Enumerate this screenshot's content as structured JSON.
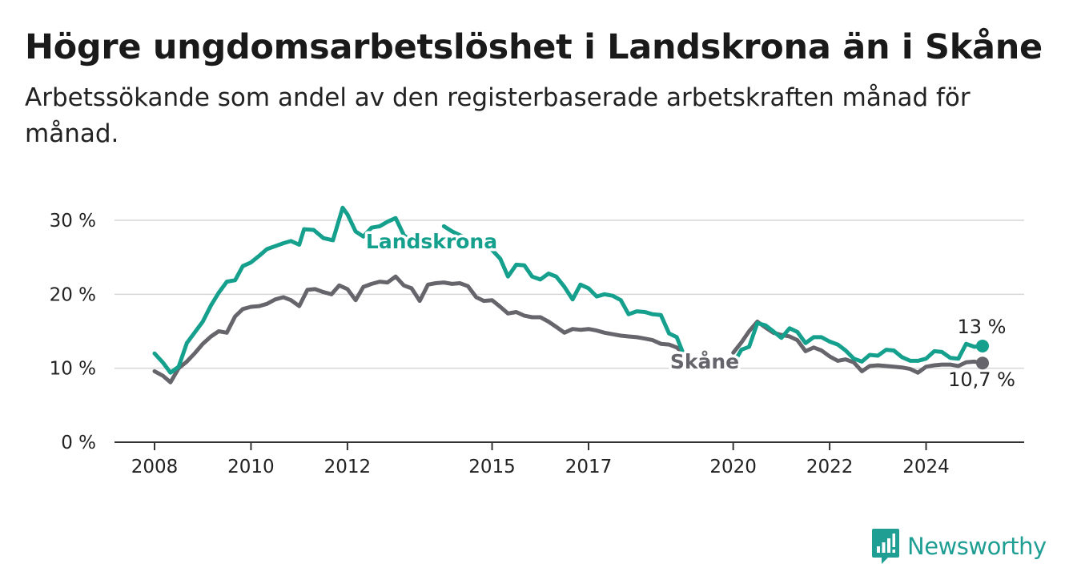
{
  "header": {
    "title": "Högre ungdomsarbetslöshet i Landskrona än i Skåne",
    "subtitle": "Arbetssökande som andel av den registerbaserade arbetskraften månad för månad."
  },
  "brand": {
    "name": "Newsworthy",
    "icon": "newsworthy-logo-icon",
    "color": "#1f9e94"
  },
  "chart_data": {
    "type": "line",
    "title": "Högre ungdomsarbetslöshet i Landskrona än i Skåne",
    "subtitle": "Arbetssökande som andel av den registerbaserade arbetskraften månad för månad.",
    "xlabel": "",
    "ylabel": "",
    "xlim": [
      2008,
      2025.8
    ],
    "ylim": [
      0,
      33
    ],
    "x_ticks": [
      {
        "value": 2008,
        "label": "2008"
      },
      {
        "value": 2010,
        "label": "2010"
      },
      {
        "value": 2012,
        "label": "2012"
      },
      {
        "value": 2015,
        "label": "2015"
      },
      {
        "value": 2017,
        "label": "2017"
      },
      {
        "value": 2020,
        "label": "2020"
      },
      {
        "value": 2022,
        "label": "2022"
      },
      {
        "value": 2024,
        "label": "2024"
      }
    ],
    "y_ticks": [
      {
        "value": 0,
        "label": "0 %"
      },
      {
        "value": 10,
        "label": "10 %"
      },
      {
        "value": 20,
        "label": "20 %"
      },
      {
        "value": 30,
        "label": "30 %"
      }
    ],
    "grid": "horizontal",
    "series": [
      {
        "name": "Landskrona",
        "color": "#15a08d",
        "end_label": "13 %",
        "segments": [
          [
            [
              2008.0,
              12.0
            ],
            [
              2008.17,
              10.8
            ],
            [
              2008.33,
              9.4
            ],
            [
              2008.5,
              10.2
            ],
            [
              2008.67,
              13.4
            ],
            [
              2008.83,
              14.8
            ],
            [
              2009.0,
              16.3
            ],
            [
              2009.17,
              18.5
            ],
            [
              2009.33,
              20.2
            ],
            [
              2009.5,
              21.7
            ],
            [
              2009.67,
              21.9
            ],
            [
              2009.83,
              23.8
            ],
            [
              2010.0,
              24.3
            ],
            [
              2010.17,
              25.2
            ],
            [
              2010.33,
              26.1
            ],
            [
              2010.5,
              26.5
            ],
            [
              2010.67,
              26.9
            ],
            [
              2010.83,
              27.2
            ],
            [
              2011.0,
              26.7
            ],
            [
              2011.1,
              28.8
            ],
            [
              2011.3,
              28.7
            ],
            [
              2011.5,
              27.6
            ],
            [
              2011.7,
              27.3
            ],
            [
              2011.9,
              31.7
            ],
            [
              2012.0,
              30.8
            ],
            [
              2012.17,
              28.5
            ],
            [
              2012.33,
              27.8
            ],
            [
              2012.5,
              29.0
            ],
            [
              2012.67,
              29.2
            ],
            [
              2012.83,
              29.8
            ],
            [
              2013.0,
              30.3
            ],
            [
              2013.17,
              28.0
            ],
            [
              2013.33,
              27.1
            ]
          ],
          [
            [
              2014.0,
              29.2
            ],
            [
              2014.17,
              28.5
            ],
            [
              2014.33,
              28.0
            ],
            [
              2014.5,
              27.5
            ],
            [
              2014.67,
              27.2
            ],
            [
              2015.0,
              26.0
            ],
            [
              2015.17,
              24.8
            ],
            [
              2015.33,
              22.4
            ],
            [
              2015.5,
              24.0
            ],
            [
              2015.67,
              23.9
            ],
            [
              2015.83,
              22.4
            ],
            [
              2016.0,
              22.0
            ],
            [
              2016.17,
              22.8
            ],
            [
              2016.33,
              22.4
            ],
            [
              2016.5,
              21.0
            ],
            [
              2016.67,
              19.3
            ],
            [
              2016.83,
              21.3
            ],
            [
              2017.0,
              20.8
            ],
            [
              2017.17,
              19.7
            ],
            [
              2017.33,
              20.0
            ],
            [
              2017.5,
              19.8
            ],
            [
              2017.67,
              19.2
            ],
            [
              2017.83,
              17.3
            ],
            [
              2018.0,
              17.7
            ],
            [
              2018.17,
              17.6
            ],
            [
              2018.33,
              17.3
            ],
            [
              2018.5,
              17.2
            ],
            [
              2018.67,
              14.7
            ],
            [
              2018.83,
              14.2
            ],
            [
              2019.0,
              11.4
            ]
          ],
          [
            [
              2020.0,
              10.6
            ],
            [
              2020.17,
              12.5
            ],
            [
              2020.33,
              12.9
            ],
            [
              2020.5,
              16.1
            ],
            [
              2020.67,
              15.8
            ],
            [
              2020.83,
              15.0
            ],
            [
              2021.0,
              14.1
            ],
            [
              2021.17,
              15.4
            ],
            [
              2021.33,
              14.9
            ],
            [
              2021.5,
              13.4
            ],
            [
              2021.67,
              14.2
            ],
            [
              2021.83,
              14.2
            ],
            [
              2022.0,
              13.6
            ],
            [
              2022.17,
              13.2
            ],
            [
              2022.33,
              12.4
            ],
            [
              2022.5,
              11.3
            ],
            [
              2022.67,
              10.9
            ],
            [
              2022.83,
              11.8
            ],
            [
              2023.0,
              11.7
            ],
            [
              2023.17,
              12.5
            ],
            [
              2023.33,
              12.4
            ],
            [
              2023.5,
              11.5
            ],
            [
              2023.67,
              11.0
            ],
            [
              2023.83,
              11.0
            ],
            [
              2024.0,
              11.3
            ],
            [
              2024.17,
              12.3
            ],
            [
              2024.33,
              12.2
            ],
            [
              2024.5,
              11.4
            ],
            [
              2024.67,
              11.3
            ],
            [
              2024.83,
              13.3
            ],
            [
              2025.0,
              12.9
            ],
            [
              2025.17,
              13.0
            ]
          ]
        ]
      },
      {
        "name": "Skåne",
        "color": "#66656c",
        "end_label": "10,7 %",
        "segments": [
          [
            [
              2008.0,
              9.6
            ],
            [
              2008.17,
              9.0
            ],
            [
              2008.33,
              8.1
            ],
            [
              2008.5,
              10.0
            ],
            [
              2008.67,
              10.9
            ],
            [
              2008.83,
              12.0
            ],
            [
              2009.0,
              13.3
            ],
            [
              2009.17,
              14.3
            ],
            [
              2009.33,
              15.0
            ],
            [
              2009.5,
              14.8
            ],
            [
              2009.67,
              17.0
            ],
            [
              2009.83,
              18.0
            ],
            [
              2010.0,
              18.3
            ],
            [
              2010.17,
              18.4
            ],
            [
              2010.33,
              18.7
            ],
            [
              2010.5,
              19.3
            ],
            [
              2010.67,
              19.6
            ],
            [
              2010.83,
              19.2
            ],
            [
              2011.0,
              18.4
            ],
            [
              2011.17,
              20.6
            ],
            [
              2011.33,
              20.7
            ],
            [
              2011.5,
              20.3
            ],
            [
              2011.67,
              20.0
            ],
            [
              2011.83,
              21.2
            ],
            [
              2012.0,
              20.7
            ],
            [
              2012.17,
              19.2
            ],
            [
              2012.33,
              21.0
            ],
            [
              2012.5,
              21.4
            ],
            [
              2012.67,
              21.7
            ],
            [
              2012.83,
              21.6
            ],
            [
              2013.0,
              22.4
            ],
            [
              2013.17,
              21.2
            ],
            [
              2013.33,
              20.8
            ],
            [
              2013.5,
              19.1
            ],
            [
              2013.67,
              21.3
            ],
            [
              2013.83,
              21.5
            ],
            [
              2014.0,
              21.6
            ],
            [
              2014.17,
              21.4
            ],
            [
              2014.33,
              21.5
            ],
            [
              2014.5,
              21.1
            ],
            [
              2014.67,
              19.6
            ],
            [
              2014.83,
              19.1
            ],
            [
              2015.0,
              19.2
            ],
            [
              2015.17,
              18.3
            ],
            [
              2015.33,
              17.4
            ],
            [
              2015.5,
              17.6
            ],
            [
              2015.67,
              17.1
            ],
            [
              2015.83,
              16.9
            ],
            [
              2016.0,
              16.9
            ],
            [
              2016.17,
              16.3
            ],
            [
              2016.33,
              15.6
            ],
            [
              2016.5,
              14.8
            ],
            [
              2016.67,
              15.3
            ],
            [
              2016.83,
              15.2
            ],
            [
              2017.0,
              15.3
            ],
            [
              2017.17,
              15.1
            ],
            [
              2017.33,
              14.8
            ],
            [
              2017.5,
              14.6
            ],
            [
              2017.67,
              14.4
            ],
            [
              2017.83,
              14.3
            ],
            [
              2018.0,
              14.2
            ],
            [
              2018.17,
              14.0
            ],
            [
              2018.33,
              13.8
            ],
            [
              2018.5,
              13.3
            ],
            [
              2018.67,
              13.2
            ],
            [
              2018.83,
              12.8
            ],
            [
              2019.0,
              11.8
            ]
          ],
          [
            [
              2020.0,
              12.1
            ],
            [
              2020.17,
              13.5
            ],
            [
              2020.33,
              15.0
            ],
            [
              2020.5,
              16.3
            ],
            [
              2020.67,
              15.5
            ],
            [
              2020.83,
              14.8
            ],
            [
              2021.0,
              14.5
            ],
            [
              2021.17,
              14.3
            ],
            [
              2021.33,
              13.8
            ],
            [
              2021.5,
              12.3
            ],
            [
              2021.67,
              12.8
            ],
            [
              2021.83,
              12.4
            ],
            [
              2022.0,
              11.6
            ],
            [
              2022.17,
              11.0
            ],
            [
              2022.33,
              11.2
            ],
            [
              2022.5,
              10.8
            ],
            [
              2022.67,
              9.6
            ],
            [
              2022.83,
              10.3
            ],
            [
              2023.0,
              10.4
            ],
            [
              2023.17,
              10.3
            ],
            [
              2023.33,
              10.2
            ],
            [
              2023.5,
              10.1
            ],
            [
              2023.67,
              9.9
            ],
            [
              2023.83,
              9.4
            ],
            [
              2024.0,
              10.2
            ],
            [
              2024.17,
              10.4
            ],
            [
              2024.33,
              10.5
            ],
            [
              2024.5,
              10.5
            ],
            [
              2024.67,
              10.3
            ],
            [
              2024.83,
              10.8
            ],
            [
              2025.0,
              10.9
            ],
            [
              2025.17,
              10.7
            ]
          ]
        ]
      }
    ],
    "annotations": [
      {
        "series": "Landskrona",
        "text": "Landskrona"
      },
      {
        "series": "Skåne",
        "text": "Skåne"
      }
    ]
  }
}
